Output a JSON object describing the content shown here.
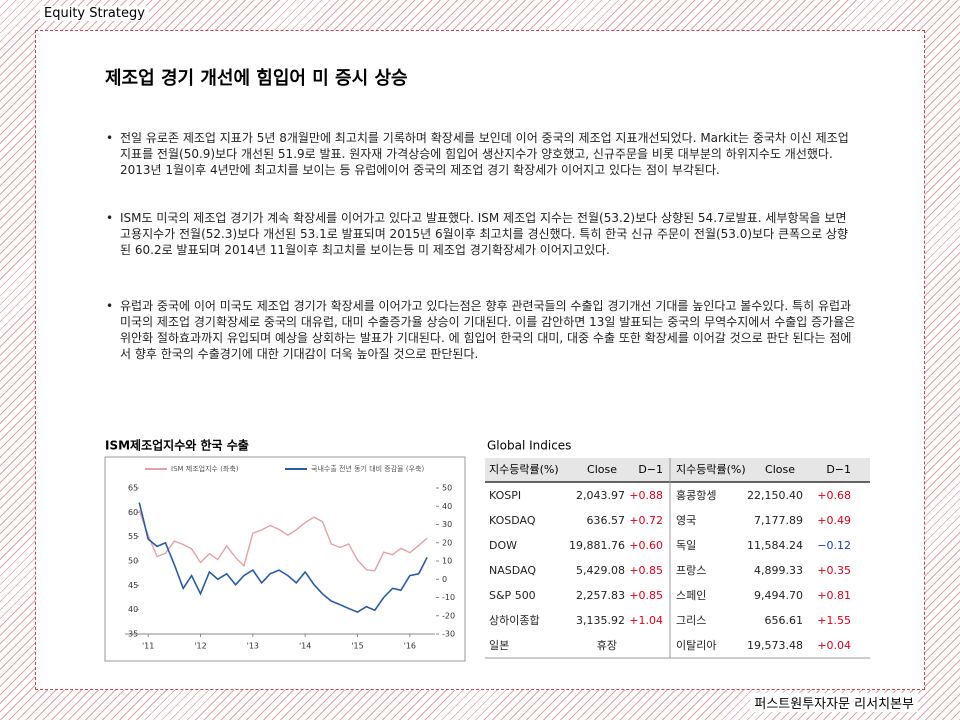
{
  "header": {
    "section": "Equity Strategy",
    "footer": "퍼스트원투자자문 리서치본부"
  },
  "title": "제조업 경기 개선에 힘입어 미 증시 상승",
  "bullets": [
    "전일 유로존 제조업 지표가 5년 8개월만에 최고치를 기록하며 확장세를 보인데 이어 중국의 제조업 지표개선되었다. Markit는 중국차 이신 제조업지표를 전월(50.9)보다 개선된 51.9로 발표. 원자재 가격상승에 힘입어 생산지수가 양호했고, 신규주문을 비롯 대부분의 하위지수도 개선했다. 2013년 1월이후 4년만에 최고치를 보이는 등 유럽에이어 중국의 제조업 경기 확장세가 이어지고 있다는 점이 부각된다.",
    "ISM도 미국의 제조업 경기가 계속 확장세를 이어가고 있다고 발표했다. ISM 제조업 지수는 전월(53.2)보다 상향된 54.7로발표. 세부항목을 보면 고용지수가 전월(52.3)보다 개선된 53.1로 발표되며 2015년 6월이후 최고치를 경신했다. 특히 한국 신규 주문이 전월(53.0)보다 큰폭으로 상향된 60.2로 발표되며 2014년 11월이후 최고치를 보이는등 미 제조업 경기확장세가 이어지고있다.",
    "유럽과 중국에 이어 미국도 제조업 경기가 확장세를 이어가고 있다는점은 향후 관련국들의 수출입 경기개선 기대를 높인다고 볼수있다. 특히 유럽과 미국의 제조업 경기확장세로 중국의 대유럽, 대미 수출증가율 상승이 기대된다. 이를 감안하면 13일 발표되는 중국의 무역수지에서 수출입 증가율은 위안화 절하효과까지 유입되며 예상을 상회하는 발표가 기대된다. 에 힘입어 한국의 대미, 대중 수출 또한 확장세를 이어갈 것으로 판단 된다는 점에서 향후 한국의 수출경기에 대한 기대감이 더욱 높아질 것으로 판단된다."
  ],
  "chart": {
    "type": "line",
    "title": "ISM제조업지수와 한국 수출",
    "x": [
      2011.33,
      2011.5,
      2011.67,
      2011.83,
      2012,
      2012.17,
      2012.33,
      2012.5,
      2012.67,
      2012.83,
      2013,
      2013.17,
      2013.33,
      2013.5,
      2013.67,
      2013.83,
      2014,
      2014.17,
      2014.33,
      2014.5,
      2014.67,
      2014.83,
      2015,
      2015.17,
      2015.33,
      2015.5,
      2015.67,
      2015.83,
      2016,
      2016.17,
      2016.33,
      2016.5,
      2016.67,
      2016.83
    ],
    "xlim": [
      2011,
      2017
    ],
    "xticks": [
      {
        "value": 2011.5,
        "label": "'11"
      },
      {
        "value": 2012.5,
        "label": "'12"
      },
      {
        "value": 2013.5,
        "label": "'13"
      },
      {
        "value": 2014.5,
        "label": "'14"
      },
      {
        "value": 2015.5,
        "label": "'15"
      },
      {
        "value": 2016.5,
        "label": "'16"
      }
    ],
    "ylim": [
      35,
      65
    ],
    "yticks": [
      35,
      40,
      45,
      50,
      55,
      60,
      65
    ],
    "y2lim": [
      -30,
      50
    ],
    "y2ticks": [
      -30,
      -20,
      -10,
      0,
      10,
      20,
      30,
      40,
      50
    ],
    "series": [
      {
        "name": "ISM 제조업지수 (좌축)",
        "color": "#e8a0a8",
        "values": [
          60.4,
          55.3,
          50.9,
          51.6,
          54.1,
          53.4,
          52.5,
          49.7,
          51.5,
          50.3,
          53.1,
          50.7,
          49.0,
          55.7,
          56.4,
          57.3,
          56.5,
          55.3,
          56.4,
          57.9,
          59.0,
          58.1,
          53.5,
          52.8,
          53.5,
          50.2,
          48.2,
          48.0,
          51.8,
          51.3,
          52.6,
          51.7,
          53.2,
          54.7
        ]
      },
      {
        "name": "국내수출 전년 동기 대비 증감율 (우축)",
        "color": "#2a5ba8",
        "axis": "y2",
        "values": [
          42,
          22,
          18,
          20,
          8,
          -5,
          2,
          -8,
          4,
          0,
          3,
          -3,
          2,
          5,
          -2,
          3,
          5,
          2,
          -2,
          4,
          -3,
          -8,
          -12,
          -14,
          -16,
          -18,
          -15,
          -17,
          -10,
          -5,
          -6,
          2,
          3,
          12
        ]
      }
    ]
  },
  "table": {
    "title": "Global Indices",
    "header": [
      "지수등락률(%)",
      "Close",
      "D−1",
      "지수등락률(%)",
      "Close",
      "D−1"
    ],
    "rows": [
      [
        "KOSPI",
        "2,043.97",
        "+0.88",
        "홍콩항셍",
        "22,150.40",
        "+0.68"
      ],
      [
        "KOSDAQ",
        "636.57",
        "+0.72",
        "영국",
        "7,177.89",
        "+0.49"
      ],
      [
        "DOW",
        "19,881.76",
        "+0.60",
        "독일",
        "11,584.24",
        "−0.12"
      ],
      [
        "NASDAQ",
        "5,429.08",
        "+0.85",
        "프랑스",
        "4,899.33",
        "+0.35"
      ],
      [
        "S&P 500",
        "2,257.83",
        "+0.85",
        "스페인",
        "9,494.70",
        "+0.81"
      ],
      [
        "상하이종합",
        "3,135.92",
        "+1.04",
        "그리스",
        "656.61",
        "+1.55"
      ],
      [
        "일본",
        "휴장",
        null,
        "이탈리아",
        "19,573.48",
        "+0.04"
      ]
    ]
  }
}
